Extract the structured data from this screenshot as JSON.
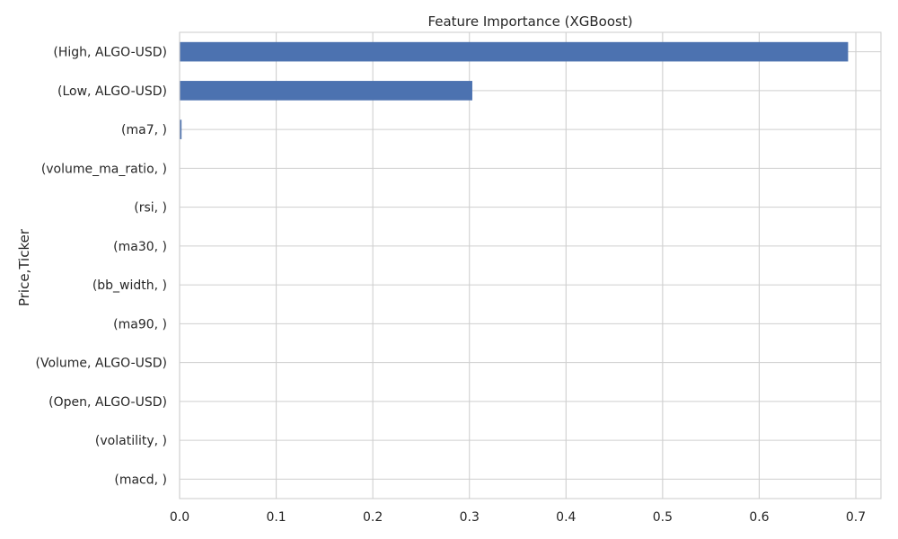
{
  "chart_data": {
    "type": "bar",
    "orientation": "horizontal",
    "title": "Feature Importance (XGBoost)",
    "xlabel": "",
    "ylabel": "Price,Ticker",
    "categories": [
      "(High, ALGO-USD)",
      "(Low, ALGO-USD)",
      "(ma7, )",
      "(volume_ma_ratio, )",
      "(rsi, )",
      "(ma30, )",
      "(bb_width, )",
      "(ma90, )",
      "(Volume, ALGO-USD)",
      "(Open, ALGO-USD)",
      "(volatility, )",
      "(macd, )"
    ],
    "values": [
      0.692,
      0.303,
      0.002,
      0,
      0,
      0,
      0,
      0,
      0,
      0,
      0,
      0
    ],
    "xlim": [
      0,
      0.726
    ],
    "xticks": [
      0.0,
      0.1,
      0.2,
      0.3,
      0.4,
      0.5,
      0.6,
      0.7
    ],
    "xtick_labels": [
      "0.0",
      "0.1",
      "0.2",
      "0.3",
      "0.4",
      "0.5",
      "0.6",
      "0.7"
    ],
    "grid": true,
    "colors": {
      "bar": "#4c72b0",
      "grid": "#cfcfcf",
      "text": "#262626",
      "background": "#ffffff"
    }
  }
}
